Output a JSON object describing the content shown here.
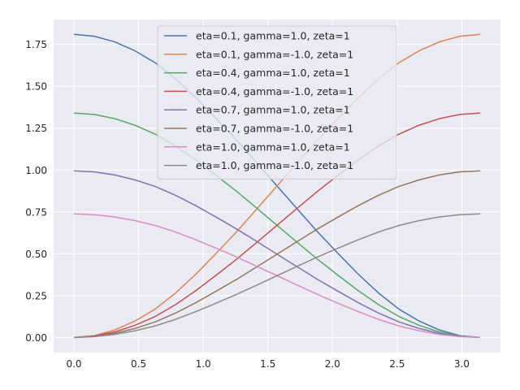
{
  "chart_data": {
    "type": "line",
    "title": "",
    "xlabel": "",
    "ylabel": "",
    "xlim": [
      -0.157,
      3.299
    ],
    "ylim": [
      -0.0904,
      1.8988
    ],
    "x_ticks": [
      0.0,
      0.5,
      1.0,
      1.5,
      2.0,
      2.5,
      3.0
    ],
    "x_tick_labels": [
      "0.0",
      "0.5",
      "1.0",
      "1.5",
      "2.0",
      "2.5",
      "3.0"
    ],
    "y_ticks": [
      0.0,
      0.25,
      0.5,
      0.75,
      1.0,
      1.25,
      1.5,
      1.75
    ],
    "y_tick_labels": [
      "0.00",
      "0.25",
      "0.50",
      "0.75",
      "1.00",
      "1.25",
      "1.50",
      "1.75"
    ],
    "grid": true,
    "legend_position": "top-center",
    "background": "#eaeaf2",
    "x": [
      0.0,
      0.1571,
      0.3142,
      0.4712,
      0.6283,
      0.7854,
      0.9425,
      1.0996,
      1.2566,
      1.4137,
      1.5708,
      1.7279,
      1.885,
      2.042,
      2.1991,
      2.3562,
      2.5133,
      2.6704,
      2.8274,
      2.9845,
      3.1416
    ],
    "series": [
      {
        "name": "eta=0.1, gamma=1.0, zeta=1",
        "color": "#4c72b0",
        "values": [
          1.81,
          1.7988,
          1.7657,
          1.7122,
          1.6406,
          1.545,
          1.4322,
          1.3078,
          1.1798,
          1.0433,
          0.905,
          0.7667,
          0.6302,
          0.5022,
          0.3778,
          0.2651,
          0.1694,
          0.0978,
          0.0443,
          0.0112,
          0.0
        ]
      },
      {
        "name": "eta=0.1, gamma=-1.0, zeta=1",
        "color": "#dd8452",
        "values": [
          0.0,
          0.0112,
          0.0443,
          0.0978,
          0.1694,
          0.2651,
          0.3778,
          0.5022,
          0.6302,
          0.7667,
          0.905,
          1.0433,
          1.1798,
          1.3078,
          1.4322,
          1.545,
          1.6406,
          1.7122,
          1.7657,
          1.7988,
          1.81
        ]
      },
      {
        "name": "eta=0.4, gamma=1.0, zeta=1",
        "color": "#55a868",
        "values": [
          1.34,
          1.3317,
          1.3072,
          1.2676,
          1.2146,
          1.144,
          1.0603,
          0.9682,
          0.8735,
          0.7725,
          0.67,
          0.5675,
          0.4665,
          0.3718,
          0.2797,
          0.196,
          0.1254,
          0.0724,
          0.0328,
          0.0083,
          0.0
        ]
      },
      {
        "name": "eta=0.4, gamma=-1.0, zeta=1",
        "color": "#c44e52",
        "values": [
          0.0,
          0.0083,
          0.0328,
          0.0724,
          0.1254,
          0.196,
          0.2797,
          0.3718,
          0.4665,
          0.5675,
          0.67,
          0.7725,
          0.8735,
          0.9682,
          1.0603,
          1.144,
          1.2146,
          1.2676,
          1.3072,
          1.3317,
          1.34
        ]
      },
      {
        "name": "eta=0.7, gamma=1.0, zeta=1",
        "color": "#8172b3",
        "values": [
          0.995,
          0.9889,
          0.9707,
          0.9412,
          0.9019,
          0.8494,
          0.7873,
          0.7189,
          0.6486,
          0.5736,
          0.4975,
          0.4214,
          0.3464,
          0.2761,
          0.2077,
          0.1456,
          0.0931,
          0.0538,
          0.0243,
          0.0061,
          0.0
        ]
      },
      {
        "name": "eta=0.7, gamma=-1.0, zeta=1",
        "color": "#937860",
        "values": [
          0.0,
          0.0061,
          0.0243,
          0.0538,
          0.0931,
          0.1456,
          0.2077,
          0.2761,
          0.3464,
          0.4214,
          0.4975,
          0.5736,
          0.6486,
          0.7189,
          0.7873,
          0.8494,
          0.9019,
          0.9412,
          0.9707,
          0.9889,
          0.995
        ]
      },
      {
        "name": "eta=1.0, gamma=1.0, zeta=1",
        "color": "#da8bc3",
        "values": [
          0.738,
          0.7334,
          0.72,
          0.6981,
          0.669,
          0.63,
          0.5838,
          0.5332,
          0.4812,
          0.4254,
          0.369,
          0.3126,
          0.2568,
          0.2048,
          0.1542,
          0.108,
          0.069,
          0.0399,
          0.018,
          0.0046,
          0.0
        ]
      },
      {
        "name": "eta=1.0, gamma=-1.0, zeta=1",
        "color": "#8c8c8c",
        "values": [
          0.0,
          0.0046,
          0.018,
          0.0399,
          0.069,
          0.108,
          0.1542,
          0.2048,
          0.2568,
          0.3126,
          0.369,
          0.4254,
          0.4812,
          0.5332,
          0.5838,
          0.63,
          0.669,
          0.6981,
          0.72,
          0.7334,
          0.738
        ]
      }
    ]
  }
}
